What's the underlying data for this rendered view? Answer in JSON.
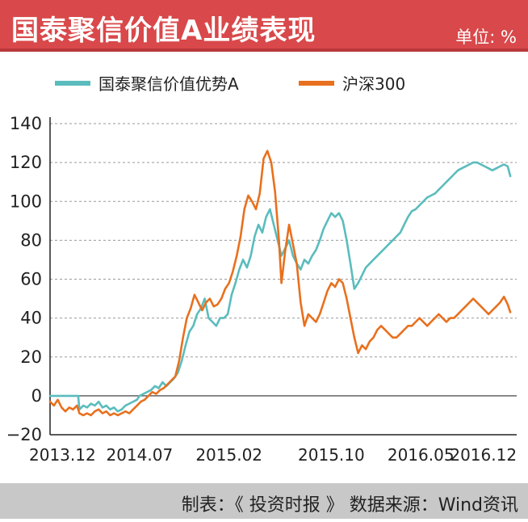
{
  "header": {
    "title": "国泰聚信价值A业绩表现",
    "unit": "单位: %"
  },
  "footer": {
    "credit": "制表：《 投资时报 》 数据来源：Wind资讯"
  },
  "colors": {
    "header_bg": "#d9484a",
    "fund": "#5bbcbd",
    "index": "#e8701e"
  },
  "chart_data": {
    "type": "line",
    "title": "国泰聚信价值A业绩表现",
    "xlabel": "",
    "ylabel": "",
    "ylim": [
      -20,
      140
    ],
    "yticks": [
      -20,
      0,
      20,
      40,
      60,
      80,
      100,
      120,
      140
    ],
    "xlim": [
      0,
      36.5
    ],
    "xticks": [
      {
        "label": "2013.12",
        "x": 0
      },
      {
        "label": "2014.07",
        "x": 7
      },
      {
        "label": "2015.02",
        "x": 14
      },
      {
        "label": "2015.10",
        "x": 22
      },
      {
        "label": "2016.05",
        "x": 29
      },
      {
        "label": "2016.12",
        "x": 36
      }
    ],
    "grid": "horizontal-dashed",
    "legend": "top",
    "series": [
      {
        "name": "国泰聚信价值优势A",
        "color": "#5bbcbd",
        "points": [
          [
            0,
            0
          ],
          [
            0.6,
            0
          ],
          [
            1.2,
            0
          ],
          [
            1.8,
            0
          ],
          [
            2.2,
            0
          ],
          [
            2.3,
            -7
          ],
          [
            2.6,
            -5
          ],
          [
            2.9,
            -6
          ],
          [
            3.2,
            -4
          ],
          [
            3.5,
            -5
          ],
          [
            3.8,
            -3
          ],
          [
            4.1,
            -6
          ],
          [
            4.4,
            -5
          ],
          [
            4.7,
            -7
          ],
          [
            5.0,
            -6
          ],
          [
            5.3,
            -8
          ],
          [
            5.6,
            -7
          ],
          [
            5.9,
            -5
          ],
          [
            6.2,
            -4
          ],
          [
            6.5,
            -3
          ],
          [
            6.8,
            -2
          ],
          [
            7.0,
            0
          ],
          [
            7.3,
            1
          ],
          [
            7.6,
            2
          ],
          [
            7.9,
            3
          ],
          [
            8.2,
            5
          ],
          [
            8.5,
            4
          ],
          [
            8.8,
            7
          ],
          [
            9.1,
            5
          ],
          [
            9.4,
            7
          ],
          [
            9.7,
            9
          ],
          [
            10.0,
            12
          ],
          [
            10.3,
            18
          ],
          [
            10.6,
            26
          ],
          [
            10.9,
            33
          ],
          [
            11.2,
            36
          ],
          [
            11.5,
            42
          ],
          [
            11.8,
            45
          ],
          [
            12.1,
            50
          ],
          [
            12.4,
            40
          ],
          [
            12.7,
            38
          ],
          [
            13.0,
            36
          ],
          [
            13.3,
            40
          ],
          [
            13.6,
            40
          ],
          [
            13.9,
            42
          ],
          [
            14.2,
            52
          ],
          [
            14.5,
            58
          ],
          [
            14.8,
            65
          ],
          [
            15.1,
            70
          ],
          [
            15.4,
            66
          ],
          [
            15.7,
            72
          ],
          [
            16.0,
            82
          ],
          [
            16.3,
            88
          ],
          [
            16.6,
            84
          ],
          [
            16.9,
            92
          ],
          [
            17.2,
            96
          ],
          [
            17.5,
            88
          ],
          [
            17.8,
            80
          ],
          [
            18.1,
            72
          ],
          [
            18.4,
            76
          ],
          [
            18.7,
            80
          ],
          [
            19.0,
            72
          ],
          [
            19.3,
            68
          ],
          [
            19.6,
            65
          ],
          [
            19.9,
            70
          ],
          [
            20.2,
            68
          ],
          [
            20.5,
            72
          ],
          [
            20.8,
            75
          ],
          [
            21.1,
            80
          ],
          [
            21.4,
            86
          ],
          [
            21.7,
            90
          ],
          [
            22.0,
            94
          ],
          [
            22.3,
            92
          ],
          [
            22.6,
            94
          ],
          [
            22.9,
            90
          ],
          [
            23.2,
            80
          ],
          [
            23.5,
            68
          ],
          [
            23.8,
            55
          ],
          [
            24.1,
            58
          ],
          [
            24.4,
            62
          ],
          [
            24.7,
            66
          ],
          [
            25.0,
            68
          ],
          [
            25.3,
            70
          ],
          [
            25.6,
            72
          ],
          [
            25.9,
            74
          ],
          [
            26.2,
            76
          ],
          [
            26.5,
            78
          ],
          [
            26.8,
            80
          ],
          [
            27.1,
            82
          ],
          [
            27.4,
            84
          ],
          [
            27.7,
            88
          ],
          [
            28.0,
            92
          ],
          [
            28.3,
            95
          ],
          [
            28.6,
            96
          ],
          [
            28.9,
            98
          ],
          [
            29.2,
            100
          ],
          [
            29.5,
            102
          ],
          [
            29.8,
            103
          ],
          [
            30.1,
            104
          ],
          [
            30.4,
            106
          ],
          [
            30.7,
            108
          ],
          [
            31.0,
            110
          ],
          [
            31.3,
            112
          ],
          [
            31.6,
            114
          ],
          [
            31.9,
            116
          ],
          [
            32.2,
            117
          ],
          [
            32.5,
            118
          ],
          [
            32.8,
            119
          ],
          [
            33.1,
            120
          ],
          [
            33.4,
            120
          ],
          [
            33.7,
            119
          ],
          [
            34.0,
            118
          ],
          [
            34.3,
            117
          ],
          [
            34.6,
            116
          ],
          [
            34.9,
            117
          ],
          [
            35.2,
            118
          ],
          [
            35.5,
            119
          ],
          [
            35.8,
            118
          ],
          [
            36.0,
            113
          ]
        ]
      },
      {
        "name": "沪深300",
        "color": "#e8701e",
        "points": [
          [
            0,
            -3
          ],
          [
            0.3,
            -5
          ],
          [
            0.6,
            -2
          ],
          [
            0.9,
            -6
          ],
          [
            1.2,
            -8
          ],
          [
            1.5,
            -6
          ],
          [
            1.8,
            -7
          ],
          [
            2.1,
            -5
          ],
          [
            2.3,
            -9
          ],
          [
            2.6,
            -10
          ],
          [
            2.9,
            -9
          ],
          [
            3.2,
            -10
          ],
          [
            3.5,
            -8
          ],
          [
            3.8,
            -7
          ],
          [
            4.1,
            -9
          ],
          [
            4.4,
            -8
          ],
          [
            4.7,
            -10
          ],
          [
            5.0,
            -9
          ],
          [
            5.3,
            -10
          ],
          [
            5.6,
            -9
          ],
          [
            5.9,
            -8
          ],
          [
            6.2,
            -9
          ],
          [
            6.5,
            -7
          ],
          [
            6.8,
            -5
          ],
          [
            7.1,
            -3
          ],
          [
            7.4,
            -2
          ],
          [
            7.7,
            0
          ],
          [
            8.0,
            2
          ],
          [
            8.3,
            1
          ],
          [
            8.6,
            3
          ],
          [
            8.9,
            4
          ],
          [
            9.2,
            6
          ],
          [
            9.5,
            8
          ],
          [
            9.8,
            10
          ],
          [
            10.1,
            18
          ],
          [
            10.4,
            30
          ],
          [
            10.7,
            40
          ],
          [
            11.0,
            45
          ],
          [
            11.3,
            52
          ],
          [
            11.6,
            48
          ],
          [
            11.9,
            44
          ],
          [
            12.2,
            48
          ],
          [
            12.5,
            50
          ],
          [
            12.8,
            46
          ],
          [
            13.1,
            47
          ],
          [
            13.4,
            50
          ],
          [
            13.7,
            55
          ],
          [
            14.0,
            58
          ],
          [
            14.3,
            64
          ],
          [
            14.6,
            72
          ],
          [
            14.9,
            82
          ],
          [
            15.2,
            96
          ],
          [
            15.5,
            103
          ],
          [
            15.8,
            100
          ],
          [
            16.1,
            96
          ],
          [
            16.4,
            104
          ],
          [
            16.7,
            122
          ],
          [
            17.0,
            126
          ],
          [
            17.3,
            120
          ],
          [
            17.6,
            105
          ],
          [
            17.9,
            80
          ],
          [
            18.1,
            58
          ],
          [
            18.4,
            75
          ],
          [
            18.7,
            88
          ],
          [
            19.0,
            78
          ],
          [
            19.3,
            68
          ],
          [
            19.6,
            48
          ],
          [
            19.9,
            36
          ],
          [
            20.2,
            42
          ],
          [
            20.5,
            40
          ],
          [
            20.8,
            38
          ],
          [
            21.1,
            42
          ],
          [
            21.4,
            48
          ],
          [
            21.7,
            54
          ],
          [
            22.0,
            58
          ],
          [
            22.3,
            56
          ],
          [
            22.6,
            60
          ],
          [
            22.9,
            58
          ],
          [
            23.2,
            50
          ],
          [
            23.5,
            40
          ],
          [
            23.8,
            30
          ],
          [
            24.1,
            22
          ],
          [
            24.4,
            26
          ],
          [
            24.7,
            24
          ],
          [
            25.0,
            28
          ],
          [
            25.3,
            30
          ],
          [
            25.6,
            34
          ],
          [
            25.9,
            36
          ],
          [
            26.2,
            34
          ],
          [
            26.5,
            32
          ],
          [
            26.8,
            30
          ],
          [
            27.1,
            30
          ],
          [
            27.4,
            32
          ],
          [
            27.7,
            34
          ],
          [
            28.0,
            36
          ],
          [
            28.3,
            36
          ],
          [
            28.6,
            38
          ],
          [
            28.9,
            40
          ],
          [
            29.2,
            38
          ],
          [
            29.5,
            36
          ],
          [
            29.8,
            38
          ],
          [
            30.1,
            40
          ],
          [
            30.4,
            42
          ],
          [
            30.7,
            40
          ],
          [
            31.0,
            38
          ],
          [
            31.3,
            40
          ],
          [
            31.6,
            40
          ],
          [
            31.9,
            42
          ],
          [
            32.2,
            44
          ],
          [
            32.5,
            46
          ],
          [
            32.8,
            48
          ],
          [
            33.1,
            50
          ],
          [
            33.4,
            48
          ],
          [
            33.7,
            46
          ],
          [
            34.0,
            44
          ],
          [
            34.3,
            42
          ],
          [
            34.6,
            44
          ],
          [
            34.9,
            46
          ],
          [
            35.2,
            48
          ],
          [
            35.5,
            51
          ],
          [
            35.8,
            47
          ],
          [
            36.0,
            43
          ]
        ]
      }
    ]
  }
}
